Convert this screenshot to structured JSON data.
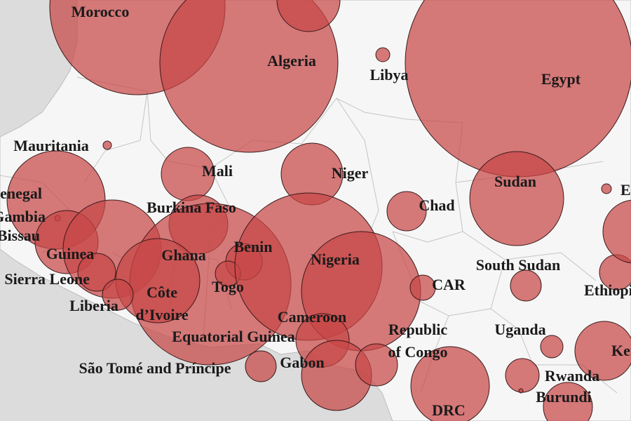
{
  "labels": [
    {
      "lines": [
        "Morocco"
      ]
    },
    {
      "lines": [
        "Algeria"
      ]
    },
    {
      "lines": [
        "Libya"
      ]
    },
    {
      "lines": [
        "Egypt"
      ]
    },
    {
      "lines": [
        "Mauritania"
      ]
    },
    {
      "lines": [
        "Mali"
      ]
    },
    {
      "lines": [
        "Niger"
      ]
    },
    {
      "lines": [
        "Sudan"
      ]
    },
    {
      "lines": [
        "Eritrea"
      ]
    },
    {
      "lines": [
        "Senegal"
      ]
    },
    {
      "lines": [
        "Gambia"
      ]
    },
    {
      "lines": [
        "Guinea-Bissau"
      ]
    },
    {
      "lines": [
        "Guinea"
      ]
    },
    {
      "lines": [
        "Sierra Leone"
      ]
    },
    {
      "lines": [
        "Burkina Faso"
      ]
    },
    {
      "lines": [
        "Benin"
      ]
    },
    {
      "lines": [
        "Ghana"
      ]
    },
    {
      "lines": [
        "Nigeria"
      ]
    },
    {
      "lines": [
        "Chad"
      ]
    },
    {
      "lines": [
        "South Sudan"
      ]
    },
    {
      "lines": [
        "Togo"
      ]
    },
    {
      "lines": [
        "Côte",
        "d’Ivoire"
      ]
    },
    {
      "lines": [
        "CAR"
      ]
    },
    {
      "lines": [
        "Ethiopia"
      ]
    },
    {
      "lines": [
        "Liberia"
      ]
    },
    {
      "lines": [
        "Cameroon"
      ]
    },
    {
      "lines": [
        "Equatorial Guinea"
      ]
    },
    {
      "lines": [
        "Republic",
        "of Congo"
      ]
    },
    {
      "lines": [
        "Uganda"
      ]
    },
    {
      "lines": [
        "Kenya"
      ]
    },
    {
      "lines": [
        "Gabon"
      ]
    },
    {
      "lines": [
        "São Tomé and Príncipe"
      ]
    },
    {
      "lines": [
        "Rwanda"
      ]
    },
    {
      "lines": [
        "Burundi"
      ]
    },
    {
      "lines": [
        "DRC"
      ]
    }
  ]
}
